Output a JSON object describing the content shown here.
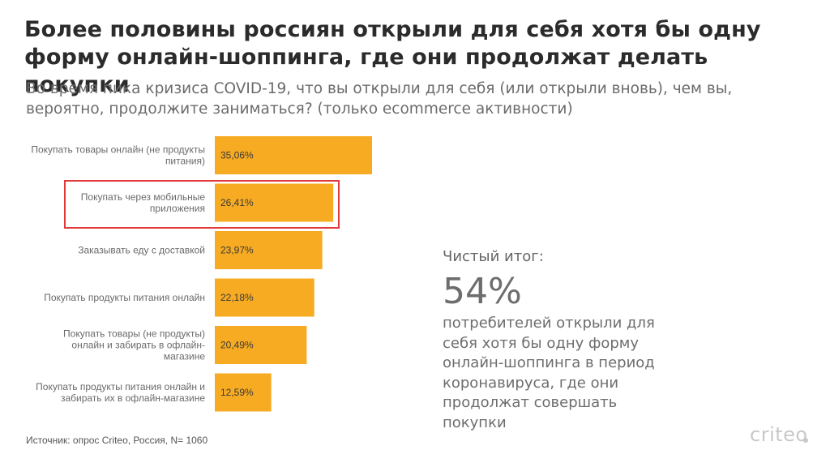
{
  "header": {
    "title_line1": "Более половины россиян открыли для себя хотя бы одну",
    "title_line2": "форму онлайн-шоппинга, где они продолжат делать покупки",
    "subtitle_line1": "Во время пика кризиса COVID-19, что вы открыли для себя (или открыли вновь), чем вы,",
    "subtitle_line2": "вероятно, продолжите заниматься? (только ecommerce активности)"
  },
  "chart_data": {
    "type": "bar",
    "orientation": "horizontal",
    "bar_color": "#f7ab22",
    "highlight_color": "#e03a3a",
    "highlighted_index": 1,
    "categories": [
      [
        "Покупать товары онлайн (не продукты",
        "питания)"
      ],
      [
        "Покупать через мобильные",
        "приложения"
      ],
      [
        "Заказывать еду с доставкой"
      ],
      [
        "Покупать продукты питания онлайн"
      ],
      [
        "Покупать товары (не продукты)",
        "онлайн и забирать в офлайн-",
        "магазине"
      ],
      [
        "Покупать продукты питания онлайн и",
        "забирать их в офлайн-магазине"
      ]
    ],
    "values": [
      35.06,
      26.41,
      23.97,
      22.18,
      20.49,
      12.59
    ],
    "value_labels": [
      "35,06%",
      "26,41%",
      "23,97%",
      "22,18%",
      "20,49%",
      "12,59%"
    ]
  },
  "summary": {
    "label": "Чистый итог:",
    "percent": "54%",
    "lines": [
      "потребителей открыли для",
      "себя хотя бы одну форму",
      "онлайн-шоппинга в период",
      "коронавируса, где они",
      "продолжат совершать",
      "покупки"
    ]
  },
  "footer": {
    "source": "Источник: опрос Criteo, Россия, N= 1060",
    "logo": "criteo"
  }
}
